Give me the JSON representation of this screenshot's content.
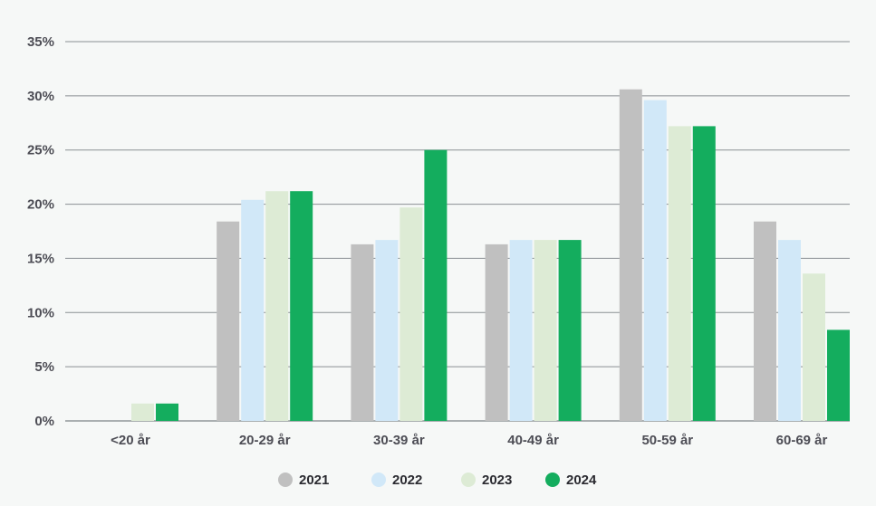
{
  "chart_data": {
    "type": "bar",
    "title": "",
    "xlabel": "",
    "ylabel": "",
    "ylim": [
      0,
      35
    ],
    "yticks": [
      0,
      5,
      10,
      15,
      20,
      25,
      30,
      35
    ],
    "ytick_labels": [
      "0%",
      "5%",
      "10%",
      "15%",
      "20%",
      "25%",
      "30%",
      "35%"
    ],
    "grid": true,
    "legend_position": "bottom",
    "categories": [
      "<20 år",
      "20-29 år",
      "30-39 år",
      "40-49 år",
      "50-59 år",
      "60-69 år"
    ],
    "series": [
      {
        "name": "2021",
        "color": "#c0c0c0",
        "values": [
          0,
          18.4,
          16.3,
          16.3,
          30.6,
          18.4
        ]
      },
      {
        "name": "2022",
        "color": "#d1e8f8",
        "values": [
          0,
          20.4,
          16.7,
          16.7,
          29.6,
          16.7
        ]
      },
      {
        "name": "2023",
        "color": "#ddebd5",
        "values": [
          1.6,
          21.2,
          19.7,
          16.7,
          27.2,
          13.6
        ]
      },
      {
        "name": "2024",
        "color": "#14ad5e",
        "values": [
          1.6,
          21.2,
          25.0,
          16.7,
          27.2,
          8.4
        ]
      }
    ]
  }
}
